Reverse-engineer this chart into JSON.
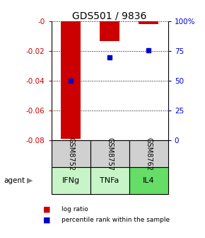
{
  "title": "GDS501 / 9836",
  "samples": [
    "GSM8752",
    "GSM8757",
    "GSM8762"
  ],
  "agents": [
    "IFNg",
    "TNFa",
    "IL4"
  ],
  "log_ratios": [
    -0.079,
    -0.013,
    -0.002
  ],
  "percentile_ranks": [
    50,
    70,
    76
  ],
  "ylim_left": [
    -0.08,
    0.0
  ],
  "ylim_right": [
    0,
    100
  ],
  "yticks_left": [
    0.0,
    -0.02,
    -0.04,
    -0.06,
    -0.08
  ],
  "ytick_labels_left": [
    "-0",
    "-0.02",
    "-0.04",
    "-0.06",
    "-0.08"
  ],
  "ytick_labels_right": [
    "0",
    "25",
    "50",
    "75",
    "100%"
  ],
  "bar_color": "#cc0000",
  "dot_color": "#0000cc",
  "sample_box_color": "#d0d0d0",
  "agent_colors": [
    "#c8f5c8",
    "#c8f5c8",
    "#66dd66"
  ],
  "legend_bar_label": "log ratio",
  "legend_dot_label": "percentile rank within the sample",
  "figsize": [
    2.9,
    3.36
  ],
  "dpi": 100
}
